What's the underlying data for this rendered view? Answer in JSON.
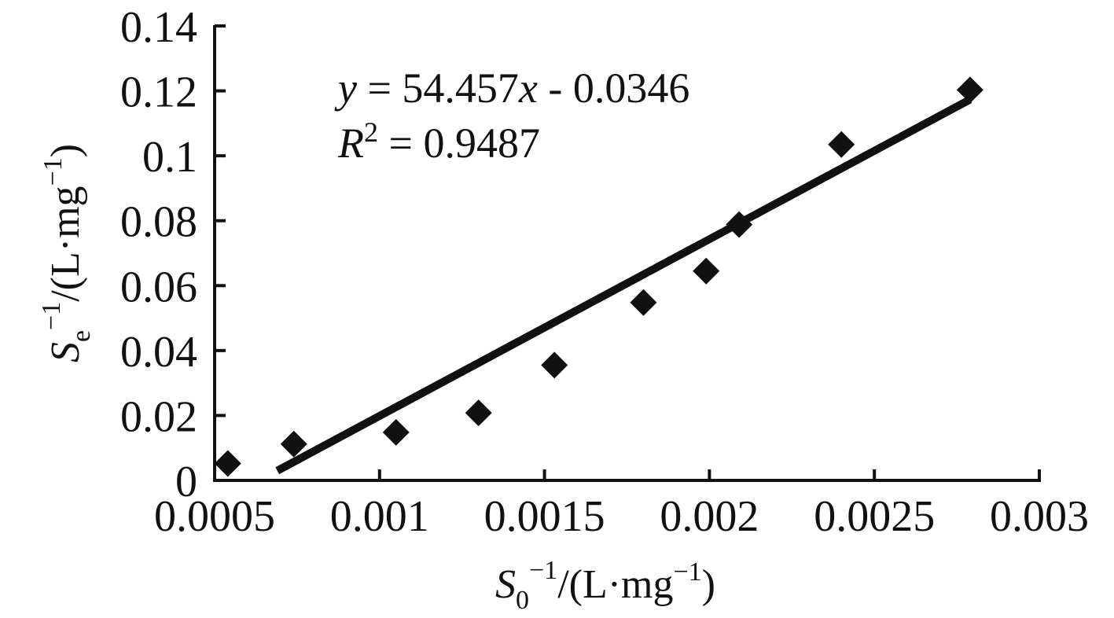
{
  "chart_data": {
    "type": "scatter",
    "x_label": {
      "symbol": "S",
      "subscript": "0",
      "superscript": "−1",
      "unit_open": "/(L·mg",
      "unit_sup": "−1",
      "unit_close": ")"
    },
    "y_label": {
      "symbol": "S",
      "subscript": "e",
      "superscript": "−1",
      "unit_open": "/(L·mg",
      "unit_sup": "−1",
      "unit_close": ")"
    },
    "xlim": [
      0.0005,
      0.003
    ],
    "ylim": [
      0,
      0.14
    ],
    "x_ticks": [
      {
        "value": 0.0005,
        "label": "0.0005"
      },
      {
        "value": 0.001,
        "label": "0.001"
      },
      {
        "value": 0.0015,
        "label": "0.0015"
      },
      {
        "value": 0.002,
        "label": "0.002"
      },
      {
        "value": 0.0025,
        "label": "0.0025"
      },
      {
        "value": 0.003,
        "label": "0.003"
      }
    ],
    "y_ticks": [
      {
        "value": 0,
        "label": "0"
      },
      {
        "value": 0.02,
        "label": "0.02"
      },
      {
        "value": 0.04,
        "label": "0.04"
      },
      {
        "value": 0.06,
        "label": "0.06"
      },
      {
        "value": 0.08,
        "label": "0.08"
      },
      {
        "value": 0.1,
        "label": "0.1"
      },
      {
        "value": 0.12,
        "label": "0.12"
      },
      {
        "value": 0.14,
        "label": "0.14"
      }
    ],
    "points": [
      {
        "x": 0.00054,
        "y": 0.0052
      },
      {
        "x": 0.00074,
        "y": 0.0112
      },
      {
        "x": 0.00105,
        "y": 0.0148
      },
      {
        "x": 0.0013,
        "y": 0.0208
      },
      {
        "x": 0.00153,
        "y": 0.0355
      },
      {
        "x": 0.0018,
        "y": 0.0548
      },
      {
        "x": 0.00199,
        "y": 0.0645
      },
      {
        "x": 0.00209,
        "y": 0.0788
      },
      {
        "x": 0.0024,
        "y": 0.1035
      },
      {
        "x": 0.00279,
        "y": 0.1203
      }
    ],
    "trendline": {
      "slope": 54.457,
      "intercept": -0.0346,
      "x_start": 0.00069,
      "x_end": 0.00279,
      "equation": {
        "y_var": "y",
        "mid": " = 54.457",
        "x_var": "x",
        "tail": " - 0.0346"
      },
      "r2": {
        "r_var": "R",
        "r_sup": "2",
        "rest": " = 0.9487"
      }
    },
    "marker": "diamond",
    "grid": false,
    "legend": "none",
    "colors": {
      "marker": "#111111",
      "line": "#111111",
      "axis": "#111111"
    }
  }
}
